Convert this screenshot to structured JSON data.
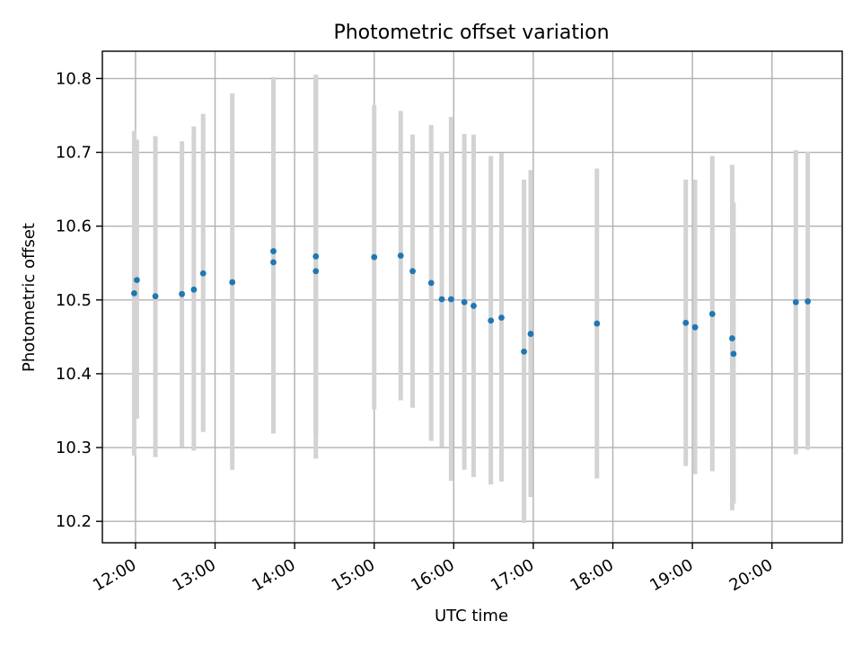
{
  "chart_data": {
    "type": "scatter",
    "title": "Photometric offset variation",
    "xlabel": "UTC time",
    "ylabel": "Photometric offset",
    "grid": true,
    "x_unit": "HH:MM UTC",
    "xlim": [
      "11:35",
      "20:53"
    ],
    "ylim": [
      10.171,
      10.837
    ],
    "x_ticks": [
      "12:00",
      "13:00",
      "14:00",
      "15:00",
      "16:00",
      "17:00",
      "18:00",
      "19:00",
      "20:00"
    ],
    "y_ticks": [
      10.2,
      10.3,
      10.4,
      10.5,
      10.6,
      10.7,
      10.8
    ],
    "point_color": "#1f77b4",
    "errorbar_color": "#d3d3d3",
    "series": [
      {
        "points": [
          {
            "x": "11:59",
            "y": 10.509,
            "ylow": 10.289,
            "yhigh": 10.729
          },
          {
            "x": "12:01",
            "y": 10.527,
            "ylow": 10.339,
            "yhigh": 10.717
          },
          {
            "x": "12:15",
            "y": 10.505,
            "ylow": 10.287,
            "yhigh": 10.722
          },
          {
            "x": "12:35",
            "y": 10.508,
            "ylow": 10.301,
            "yhigh": 10.715
          },
          {
            "x": "12:44",
            "y": 10.514,
            "ylow": 10.296,
            "yhigh": 10.735
          },
          {
            "x": "12:51",
            "y": 10.536,
            "ylow": 10.321,
            "yhigh": 10.752
          },
          {
            "x": "13:13",
            "y": 10.524,
            "ylow": 10.27,
            "yhigh": 10.78
          },
          {
            "x": "13:44",
            "y": 10.566,
            "ylow": 10.319,
            "yhigh": 10.802
          },
          {
            "x": "13:44",
            "y": 10.551,
            "ylow": 10.319,
            "yhigh": 10.782
          },
          {
            "x": "14:16",
            "y": 10.539,
            "ylow": 10.285,
            "yhigh": 10.805
          },
          {
            "x": "14:16",
            "y": 10.559,
            "ylow": 10.313,
            "yhigh": 10.805
          },
          {
            "x": "15:00",
            "y": 10.558,
            "ylow": 10.352,
            "yhigh": 10.764
          },
          {
            "x": "15:20",
            "y": 10.56,
            "ylow": 10.364,
            "yhigh": 10.756
          },
          {
            "x": "15:29",
            "y": 10.539,
            "ylow": 10.354,
            "yhigh": 10.724
          },
          {
            "x": "15:43",
            "y": 10.523,
            "ylow": 10.309,
            "yhigh": 10.737
          },
          {
            "x": "15:51",
            "y": 10.501,
            "ylow": 10.301,
            "yhigh": 10.701
          },
          {
            "x": "15:58",
            "y": 10.501,
            "ylow": 10.255,
            "yhigh": 10.748
          },
          {
            "x": "16:08",
            "y": 10.497,
            "ylow": 10.27,
            "yhigh": 10.725
          },
          {
            "x": "16:15",
            "y": 10.492,
            "ylow": 10.26,
            "yhigh": 10.724
          },
          {
            "x": "16:28",
            "y": 10.472,
            "ylow": 10.25,
            "yhigh": 10.695
          },
          {
            "x": "16:36",
            "y": 10.476,
            "ylow": 10.254,
            "yhigh": 10.699
          },
          {
            "x": "16:53",
            "y": 10.43,
            "ylow": 10.198,
            "yhigh": 10.663
          },
          {
            "x": "16:58",
            "y": 10.454,
            "ylow": 10.233,
            "yhigh": 10.676
          },
          {
            "x": "17:48",
            "y": 10.468,
            "ylow": 10.258,
            "yhigh": 10.678
          },
          {
            "x": "18:55",
            "y": 10.469,
            "ylow": 10.275,
            "yhigh": 10.663
          },
          {
            "x": "19:02",
            "y": 10.463,
            "ylow": 10.264,
            "yhigh": 10.663
          },
          {
            "x": "19:15",
            "y": 10.481,
            "ylow": 10.268,
            "yhigh": 10.695
          },
          {
            "x": "19:30",
            "y": 10.448,
            "ylow": 10.215,
            "yhigh": 10.683
          },
          {
            "x": "19:31",
            "y": 10.427,
            "ylow": 10.224,
            "yhigh": 10.632
          },
          {
            "x": "20:18",
            "y": 10.497,
            "ylow": 10.291,
            "yhigh": 10.703
          },
          {
            "x": "20:27",
            "y": 10.498,
            "ylow": 10.297,
            "yhigh": 10.701
          }
        ]
      }
    ]
  }
}
